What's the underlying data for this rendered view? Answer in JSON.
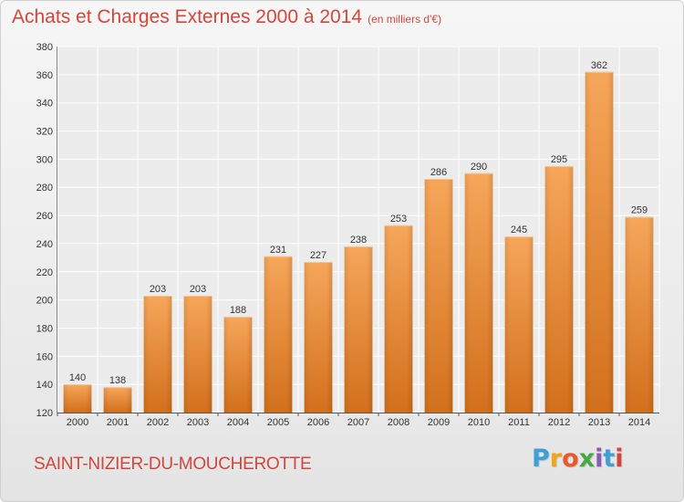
{
  "title": "Achats et Charges Externes 2000 à 2014",
  "unit": "(en milliers d'€)",
  "commune": "SAINT-NIZIER-DU-MOUCHEROTTE",
  "logo": {
    "letters": [
      "P",
      "r",
      "o",
      "x",
      "i",
      "t",
      "i"
    ],
    "colors": [
      "#3f9fd8",
      "#f2a51a",
      "#e9572b",
      "#46a846",
      "#8a5bb5",
      "#3f9fd8",
      "#d2463c"
    ]
  },
  "colors": {
    "title": "#d2463c",
    "bar": "#f0923a",
    "bar_dark": "#d2701c"
  },
  "chart_data": {
    "type": "bar",
    "title": "Achats et Charges Externes 2000 à 2014",
    "subtitle": "(en milliers d'€)",
    "categories": [
      "2000",
      "2001",
      "2002",
      "2003",
      "2004",
      "2005",
      "2006",
      "2007",
      "2008",
      "2009",
      "2010",
      "2011",
      "2012",
      "2013",
      "2014"
    ],
    "values": [
      140,
      138,
      203,
      203,
      188,
      231,
      227,
      238,
      253,
      286,
      290,
      245,
      295,
      362,
      259
    ],
    "ylim": [
      120,
      380
    ],
    "yticks": [
      120,
      140,
      160,
      180,
      200,
      220,
      240,
      260,
      280,
      300,
      320,
      340,
      360,
      380
    ],
    "grid": true,
    "xlabel": "",
    "ylabel": ""
  }
}
